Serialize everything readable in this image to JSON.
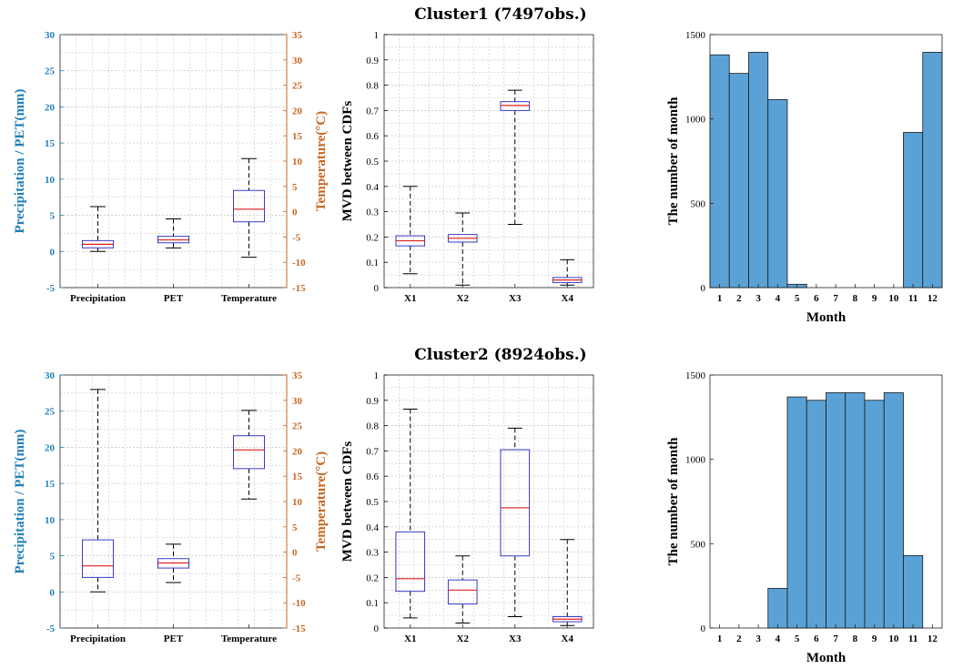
{
  "colors": {
    "box": "#3a3ac8",
    "median": "#e02020",
    "whisker": "#000000",
    "bar_fill": "#5aa2d6",
    "bar_edge": "#1a1a1a",
    "left_axis": "#1f7fb8",
    "right_axis": "#c8661f"
  },
  "chart_data": [
    {
      "type": "box",
      "cluster_title": "Cluster1 (7497obs.)",
      "categories": [
        "Precipitation",
        "PET",
        "Temperature"
      ],
      "ylabel": "Precipitation / PET(mm)",
      "ylim": [
        -5,
        30
      ],
      "yticks": [
        -5,
        0,
        5,
        10,
        15,
        20,
        25,
        30
      ],
      "y2label": "Temperature(°C)",
      "y2lim": [
        -15,
        35
      ],
      "y2ticks": [
        -15,
        -10,
        -5,
        0,
        5,
        10,
        15,
        20,
        25,
        30,
        35
      ],
      "grid": true,
      "boxes": [
        {
          "axis": "left",
          "min": 0,
          "q1": 0.5,
          "median": 1.0,
          "q3": 1.5,
          "max": 6.2
        },
        {
          "axis": "left",
          "min": 0.5,
          "q1": 1.2,
          "median": 1.6,
          "q3": 2.1,
          "max": 4.5
        },
        {
          "axis": "right",
          "min": -9.0,
          "q1": -2.0,
          "median": 0.5,
          "q3": 4.2,
          "max": 10.5
        }
      ]
    },
    {
      "type": "box",
      "categories": [
        "X1",
        "X2",
        "X3",
        "X4"
      ],
      "ylabel": "MVD between CDFs",
      "ylim": [
        0,
        1
      ],
      "yticks": [
        0,
        0.1,
        0.2,
        0.3,
        0.4,
        0.5,
        0.6,
        0.7,
        0.8,
        0.9,
        1
      ],
      "grid": true,
      "boxes": [
        {
          "min": 0.055,
          "q1": 0.165,
          "median": 0.185,
          "q3": 0.205,
          "max": 0.4
        },
        {
          "min": 0.01,
          "q1": 0.18,
          "median": 0.195,
          "q3": 0.21,
          "max": 0.295
        },
        {
          "min": 0.25,
          "q1": 0.7,
          "median": 0.72,
          "q3": 0.735,
          "max": 0.78
        },
        {
          "min": 0.01,
          "q1": 0.02,
          "median": 0.03,
          "q3": 0.04,
          "max": 0.11
        }
      ]
    },
    {
      "type": "bar",
      "categories": [
        "1",
        "2",
        "3",
        "4",
        "5",
        "6",
        "7",
        "8",
        "9",
        "10",
        "11",
        "12"
      ],
      "values": [
        1380,
        1270,
        1395,
        1115,
        20,
        0,
        0,
        0,
        0,
        0,
        920,
        1395
      ],
      "xlabel": "Month",
      "ylabel": "The number of month",
      "ylim": [
        0,
        1500
      ],
      "yticks": [
        0,
        500,
        1000,
        1500
      ]
    },
    {
      "type": "box",
      "cluster_title": "Cluster2 (8924obs.)",
      "categories": [
        "Precipitation",
        "PET",
        "Temperature"
      ],
      "ylabel": "Precipitation / PET(mm)",
      "ylim": [
        -5,
        30
      ],
      "yticks": [
        -5,
        0,
        5,
        10,
        15,
        20,
        25,
        30
      ],
      "y2label": "Temperature(°C)",
      "y2lim": [
        -15,
        35
      ],
      "y2ticks": [
        -15,
        -10,
        -5,
        0,
        5,
        10,
        15,
        20,
        25,
        30,
        35
      ],
      "grid": true,
      "boxes": [
        {
          "axis": "left",
          "min": 0,
          "q1": 2.0,
          "median": 3.6,
          "q3": 7.2,
          "max": 28.0
        },
        {
          "axis": "left",
          "min": 1.3,
          "q1": 3.3,
          "median": 4.0,
          "q3": 4.6,
          "max": 6.6
        },
        {
          "axis": "right",
          "min": 10.5,
          "q1": 16.5,
          "median": 20.2,
          "q3": 23.0,
          "max": 28.0
        }
      ]
    },
    {
      "type": "box",
      "categories": [
        "X1",
        "X2",
        "X3",
        "X4"
      ],
      "ylabel": "MVD between CDFs",
      "ylim": [
        0,
        1
      ],
      "yticks": [
        0,
        0.1,
        0.2,
        0.3,
        0.4,
        0.5,
        0.6,
        0.7,
        0.8,
        0.9,
        1
      ],
      "grid": true,
      "boxes": [
        {
          "min": 0.04,
          "q1": 0.145,
          "median": 0.195,
          "q3": 0.38,
          "max": 0.865
        },
        {
          "min": 0.02,
          "q1": 0.095,
          "median": 0.15,
          "q3": 0.19,
          "max": 0.285
        },
        {
          "min": 0.045,
          "q1": 0.285,
          "median": 0.475,
          "q3": 0.705,
          "max": 0.79
        },
        {
          "min": 0.01,
          "q1": 0.025,
          "median": 0.035,
          "q3": 0.045,
          "max": 0.35
        }
      ]
    },
    {
      "type": "bar",
      "categories": [
        "1",
        "2",
        "3",
        "4",
        "5",
        "6",
        "7",
        "8",
        "9",
        "10",
        "11",
        "12"
      ],
      "values": [
        0,
        0,
        0,
        235,
        1370,
        1350,
        1395,
        1395,
        1350,
        1395,
        430,
        0
      ],
      "xlabel": "Month",
      "ylabel": "The number of month",
      "ylim": [
        0,
        1500
      ],
      "yticks": [
        0,
        500,
        1000,
        1500
      ]
    }
  ]
}
